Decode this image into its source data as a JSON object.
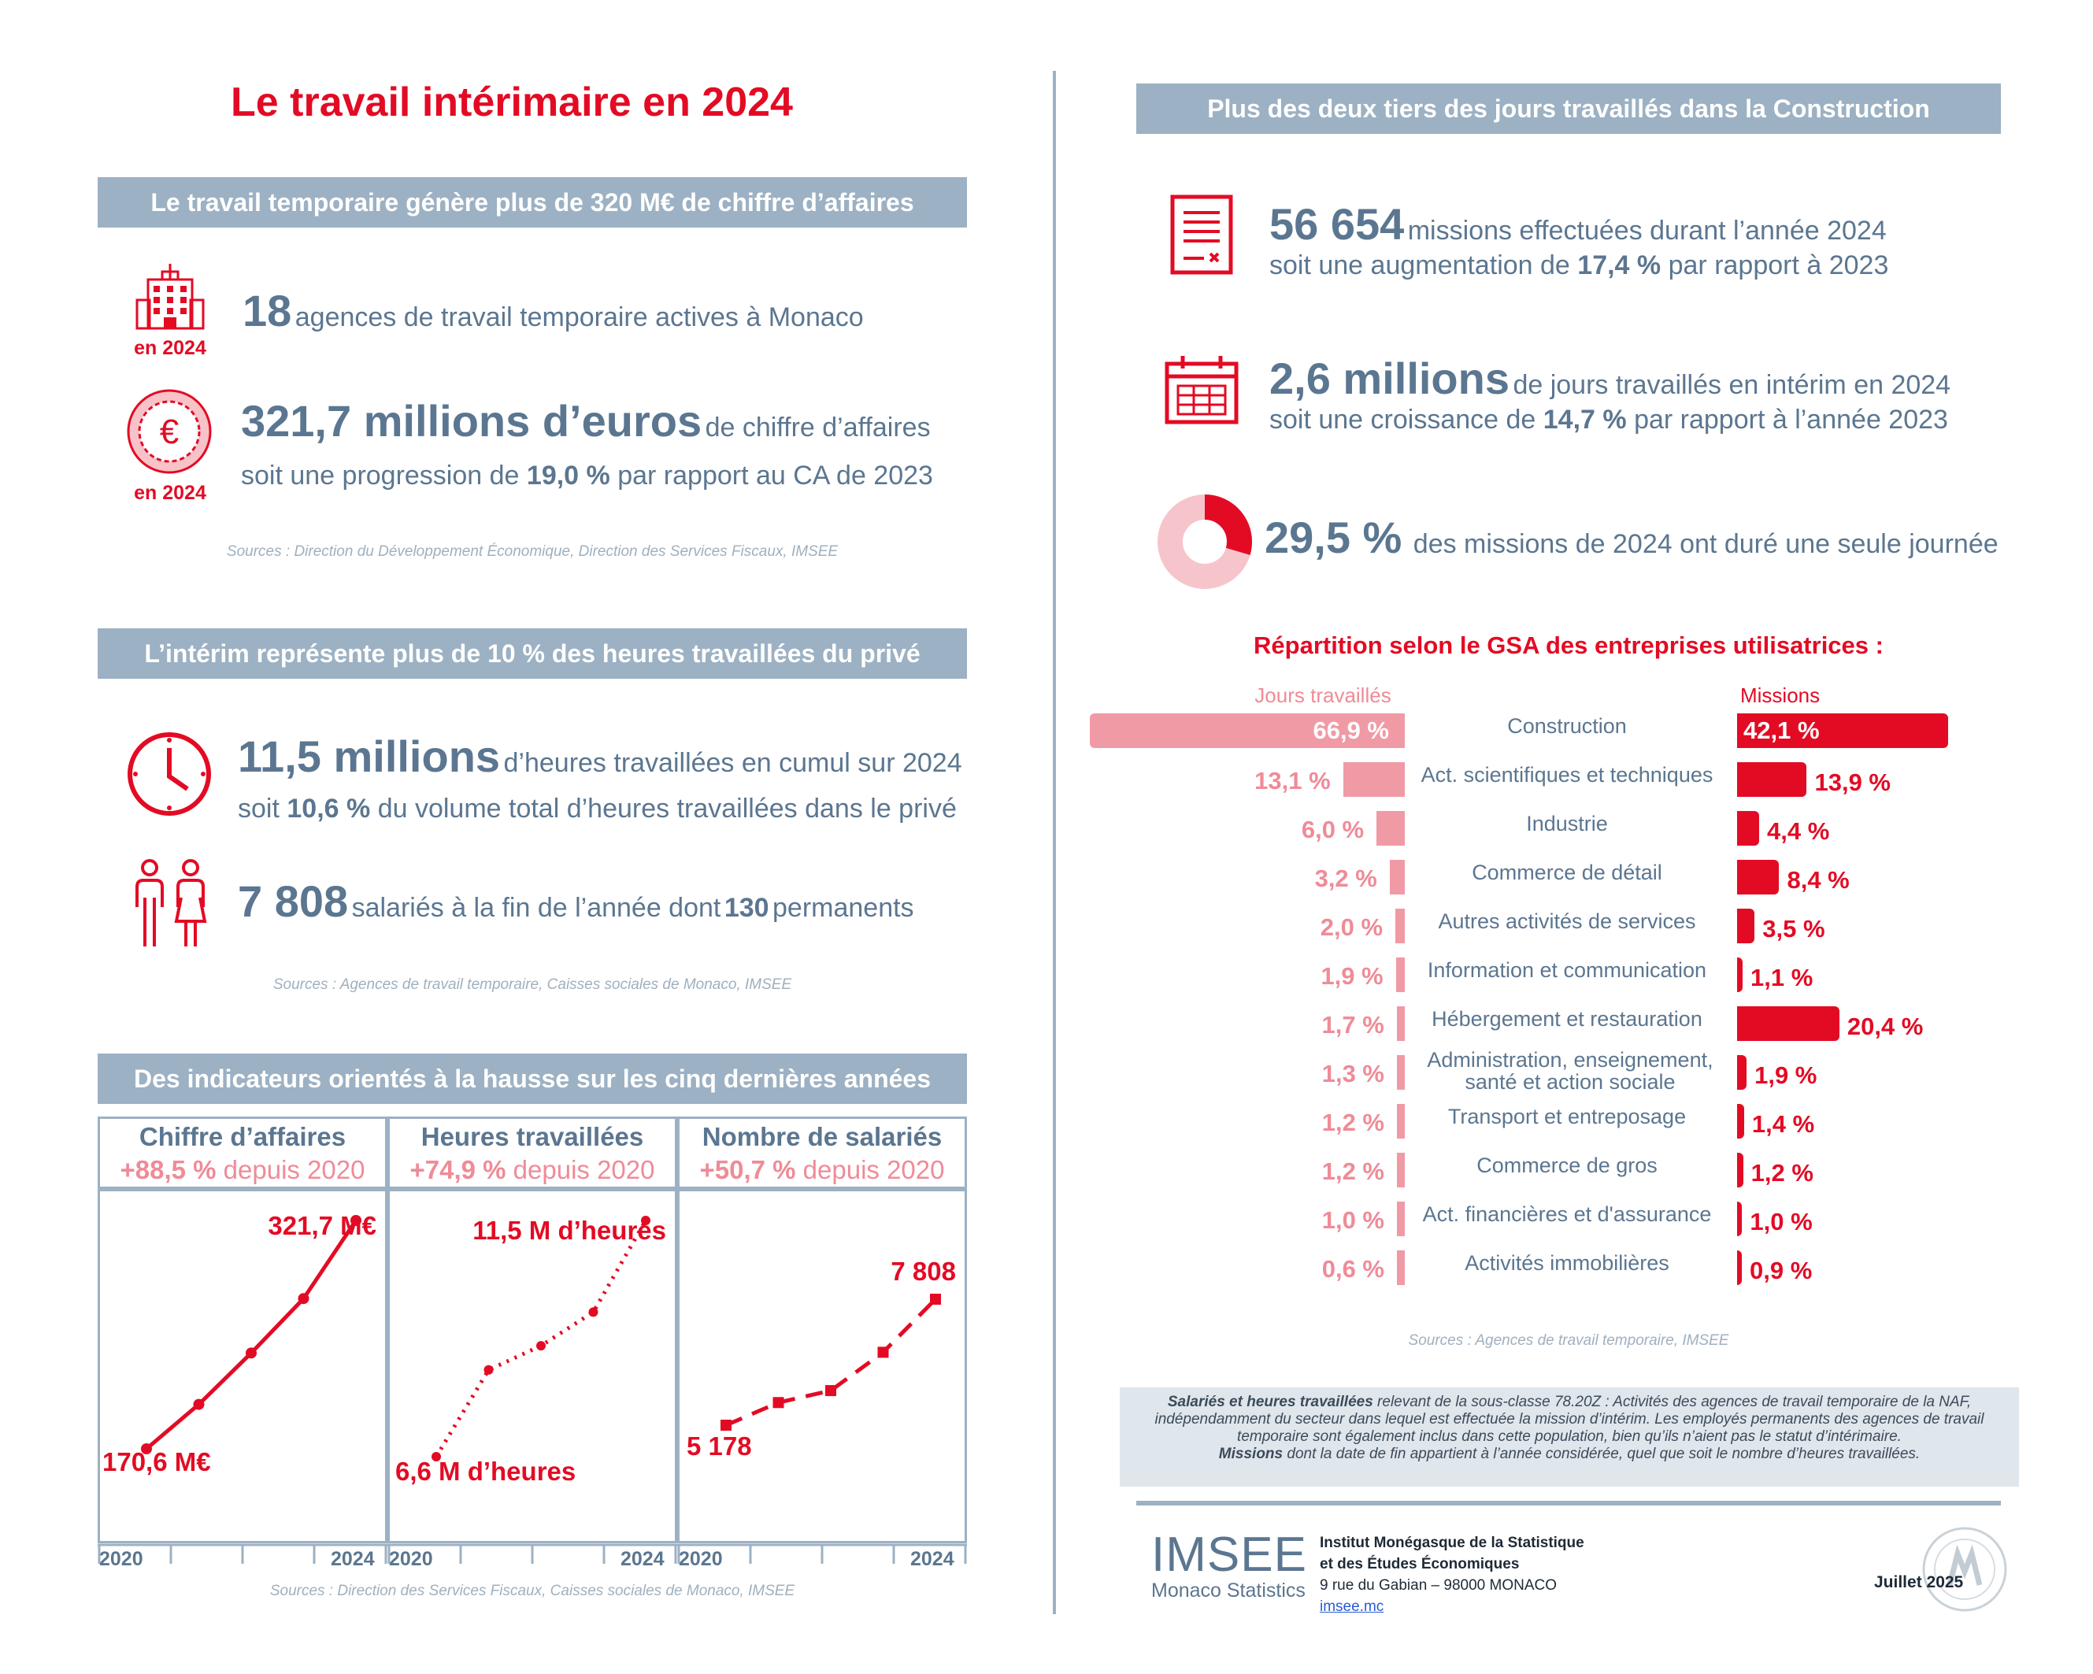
{
  "title": "Le travail intérimaire en 2024",
  "left": {
    "section1": {
      "heading": "Le travail temporaire génère plus de 320 M€ de chiffre d’affaires",
      "item1": {
        "icon_caption": "en 2024",
        "big": "18",
        "text": "agences de travail temporaire actives à Monaco"
      },
      "item2": {
        "icon_caption": "en 2024",
        "big": "321,7 millions d’euros",
        "text": "de chiffre d’affaires",
        "line2_a": "soit une progression de",
        "line2_b": "19,0 %",
        "line2_c": "par rapport au CA de 2023"
      },
      "source": "Sources : Direction du Développement Économique, Direction des Services Fiscaux, IMSEE"
    },
    "section2": {
      "heading": "L’intérim représente plus de 10 % des heures travaillées du privé",
      "item1": {
        "big": "11,5 millions",
        "text": "d’heures travaillées en cumul sur 2024",
        "line2_a": "soit",
        "line2_b": "10,6 %",
        "line2_c": "du volume total d’heures travaillées dans le privé"
      },
      "item2": {
        "big": "7 808",
        "text_a": "salariés à la fin de l’année dont",
        "text_b": "130",
        "text_c": "permanents"
      },
      "source": "Sources : Agences de travail temporaire, Caisses sociales de Monaco, IMSEE"
    },
    "section3": {
      "heading": "Des indicateurs orientés à la hausse sur les cinq dernières années",
      "source": "Sources : Direction des Services Fiscaux, Caisses sociales de Monaco, IMSEE"
    }
  },
  "chart_data": [
    {
      "type": "line",
      "title": "Chiffre d’affaires",
      "subtitle_a": "+88,5 %",
      "subtitle_b": "depuis 2020",
      "x": [
        2020,
        2021,
        2022,
        2023,
        2024
      ],
      "values": [
        170.6,
        200,
        234,
        270,
        321.7
      ],
      "start_label": "170,6 M€",
      "end_label": "321,7 M€",
      "x_start": "2020",
      "x_end": "2024",
      "line_style": "solid"
    },
    {
      "type": "line",
      "title": "Heures travaillées",
      "subtitle_a": "+74,9 %",
      "subtitle_b": "depuis 2020",
      "x": [
        2020,
        2021,
        2022,
        2023,
        2024
      ],
      "values": [
        6.6,
        8.4,
        8.9,
        9.6,
        11.5
      ],
      "start_label": "6,6 M d’heures",
      "end_label": "11,5 M d’heures",
      "x_start": "2020",
      "x_end": "2024",
      "line_style": "dotted"
    },
    {
      "type": "line",
      "title": "Nombre de salariés",
      "subtitle_a": "+50,7 %",
      "subtitle_b": "depuis 2020",
      "x": [
        2020,
        2021,
        2022,
        2023,
        2024
      ],
      "values": [
        5178,
        5650,
        5900,
        6700,
        7808
      ],
      "start_label": "5 178",
      "end_label": "7 808",
      "x_start": "2020",
      "x_end": "2024",
      "line_style": "dashed"
    },
    {
      "type": "bar",
      "title": "Répartition selon le GSA des entreprises utilisatrices :",
      "series": [
        {
          "name": "Jours travaillés",
          "color": "#f09aa5",
          "values": [
            66.9,
            13.1,
            6.0,
            3.2,
            2.0,
            1.9,
            1.7,
            1.3,
            1.2,
            1.2,
            1.0,
            0.6
          ],
          "labels": [
            "66,9 %",
            "13,1 %",
            "6,0 %",
            "3,2 %",
            "2,0 %",
            "1,9 %",
            "1,7 %",
            "1,3 %",
            "1,2 %",
            "1,2 %",
            "1,0 %",
            "0,6 %"
          ]
        },
        {
          "name": "Missions",
          "color": "#e30b24",
          "values": [
            42.1,
            13.9,
            4.4,
            8.4,
            3.5,
            1.1,
            20.4,
            1.9,
            1.4,
            1.2,
            1.0,
            0.9
          ],
          "labels": [
            "42,1 %",
            "13,9 %",
            "4,4 %",
            "8,4 %",
            "3,5 %",
            "1,1 %",
            "20,4 %",
            "1,9 %",
            "1,4 %",
            "1,2 %",
            "1,0 %",
            "0,9 %"
          ]
        }
      ],
      "categories": [
        "Construction",
        "Act. scientifiques et techniques",
        "Industrie",
        "Commerce de détail",
        "Autres activités de services",
        "Information et communication",
        "Hébergement et restauration",
        "Administration, enseignement, santé et action sociale",
        "Transport et entreposage",
        "Commerce de gros",
        "Act. financières et d'assurance",
        "Activités immobilières"
      ],
      "source": "Sources : Agences de travail temporaire, IMSEE"
    }
  ],
  "right": {
    "heading": "Plus des deux tiers des jours travaillés dans la Construction",
    "item1": {
      "big": "56 654",
      "text": "missions effectuées durant l’année 2024",
      "line2_a": "soit une augmentation de",
      "line2_b": "17,4 %",
      "line2_c": "par rapport à 2023"
    },
    "item2": {
      "big": "2,6 millions",
      "text": "de jours travaillés en intérim en 2024",
      "line2_a": "soit une croissance de",
      "line2_b": "14,7 %",
      "line2_c": "par rapport à l’année 2023"
    },
    "item3": {
      "big": "29,5 %",
      "text": "des missions de 2024 ont duré une seule journée",
      "share": 29.5
    },
    "note_bold1": "Salariés et heures travaillées",
    "note1": "relevant de la sous-classe 78.20Z : Activités des agences de travail temporaire de la NAF, indépendamment du secteur dans lequel est effectuée la mission d’intérim. Les employés permanents des agences de travail temporaire sont également inclus dans cette population, bien qu’ils n’aient pas le statut d’intérimaire.",
    "note_bold2": "Missions",
    "note2": "dont la date de fin appartient à l’année considérée, quel que soit le nombre d’heures travaillées."
  },
  "footer": {
    "logo": "IMSEE",
    "logo_sub": "Monaco Statistics",
    "org1": "Institut Monégasque de la Statistique",
    "org2": "et des Études Économiques",
    "address": "9 rue du Gabian – 98000 MONACO",
    "link": "imsee.mc",
    "date": "Juillet 2025"
  },
  "colors": {
    "red": "#e30b24",
    "pink": "#f09aa5",
    "slate": "#5b7690",
    "band": "#9cb1c3"
  }
}
